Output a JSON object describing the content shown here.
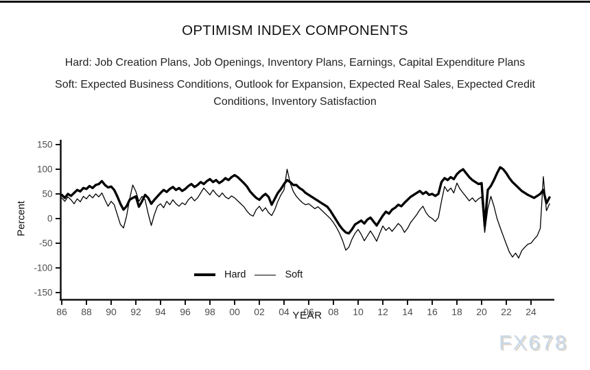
{
  "page": {
    "title": "OPTIMISM INDEX COMPONENTS",
    "subtitle_hard": "Hard: Job Creation Plans, Job Openings, Inventory Plans, Earnings, Capital Expenditure Plans",
    "subtitle_soft": "Soft: Expected Business Conditions, Outlook for Expansion, Expected Real Sales, Expected Credit Conditions, Inventory Satisfaction",
    "watermark": "FX678"
  },
  "colors": {
    "line": "#000000",
    "axis": "#111111",
    "tick_label": "#4d4d4d",
    "watermark": "#c7d8eb"
  },
  "chart_data": {
    "type": "line",
    "title": "OPTIMISM INDEX COMPONENTS",
    "xlabel": "YEAR",
    "ylabel": "Percent",
    "grid": false,
    "axis_color": "#111111",
    "tick_label_color": "#4d4d4d",
    "ylim": [
      -150,
      150
    ],
    "yticks": [
      150,
      100,
      50,
      0,
      -50,
      -100,
      -150
    ],
    "xticks": [
      {
        "year": 1986,
        "label": "86"
      },
      {
        "year": 1988,
        "label": "88"
      },
      {
        "year": 1990,
        "label": "90"
      },
      {
        "year": 1992,
        "label": "92"
      },
      {
        "year": 1994,
        "label": "94"
      },
      {
        "year": 1996,
        "label": "96"
      },
      {
        "year": 1998,
        "label": "98"
      },
      {
        "year": 2000,
        "label": "00"
      },
      {
        "year": 2002,
        "label": "02"
      },
      {
        "year": 2004,
        "label": "04"
      },
      {
        "year": 2006,
        "label": "06"
      },
      {
        "year": 2008,
        "label": "08"
      },
      {
        "year": 2010,
        "label": "10"
      },
      {
        "year": 2012,
        "label": "12"
      },
      {
        "year": 2014,
        "label": "14"
      },
      {
        "year": 2016,
        "label": "16"
      },
      {
        "year": 2018,
        "label": "18"
      },
      {
        "year": 2020,
        "label": "20"
      },
      {
        "year": 2022,
        "label": "22"
      },
      {
        "year": 2024,
        "label": "24"
      }
    ],
    "x_start": 1986.0,
    "x_step": 0.25,
    "legend": {
      "position": "inside-bottom-center",
      "entries": [
        "Hard",
        "Soft"
      ]
    },
    "series": [
      {
        "name": "Hard",
        "color": "#000000",
        "line_width": 3.4,
        "values": [
          48,
          42,
          50,
          46,
          52,
          58,
          55,
          62,
          60,
          66,
          62,
          68,
          70,
          76,
          68,
          63,
          65,
          58,
          45,
          30,
          18,
          25,
          38,
          42,
          45,
          24,
          35,
          48,
          42,
          30,
          38,
          45,
          52,
          58,
          54,
          60,
          64,
          58,
          62,
          56,
          60,
          66,
          70,
          64,
          68,
          74,
          70,
          76,
          80,
          74,
          78,
          72,
          76,
          82,
          78,
          84,
          88,
          84,
          78,
          72,
          65,
          55,
          48,
          42,
          38,
          45,
          50,
          44,
          28,
          40,
          52,
          60,
          70,
          78,
          74,
          68,
          68,
          62,
          58,
          52,
          48,
          44,
          40,
          36,
          32,
          28,
          24,
          16,
          6,
          -4,
          -14,
          -22,
          -28,
          -30,
          -22,
          -12,
          -8,
          -4,
          -10,
          -2,
          2,
          -6,
          -14,
          -4,
          6,
          14,
          10,
          18,
          22,
          28,
          25,
          32,
          38,
          44,
          48,
          52,
          56,
          50,
          54,
          48,
          50,
          46,
          50,
          74,
          82,
          78,
          84,
          80,
          90,
          96,
          100,
          92,
          84,
          78,
          74,
          70,
          72,
          -15,
          58,
          66,
          78,
          92,
          104,
          100,
          92,
          82,
          74,
          68,
          62,
          56,
          52,
          48,
          45,
          42,
          46,
          50,
          58,
          31,
          43
        ]
      },
      {
        "name": "Soft",
        "color": "#000000",
        "line_width": 1.3,
        "values": [
          42,
          35,
          44,
          38,
          30,
          40,
          34,
          45,
          40,
          48,
          42,
          50,
          44,
          52,
          38,
          25,
          35,
          28,
          8,
          -12,
          -19,
          5,
          40,
          68,
          55,
          35,
          45,
          38,
          10,
          -14,
          8,
          25,
          30,
          22,
          35,
          28,
          38,
          30,
          25,
          32,
          28,
          38,
          44,
          36,
          42,
          52,
          62,
          55,
          48,
          58,
          50,
          44,
          52,
          44,
          40,
          46,
          42,
          36,
          30,
          24,
          15,
          8,
          5,
          18,
          25,
          15,
          22,
          12,
          6,
          18,
          35,
          48,
          58,
          100,
          72,
          55,
          45,
          38,
          32,
          28,
          30,
          25,
          20,
          24,
          18,
          12,
          6,
          0,
          -8,
          -18,
          -30,
          -45,
          -64,
          -58,
          -42,
          -30,
          -22,
          -32,
          -45,
          -35,
          -25,
          -35,
          -46,
          -30,
          -15,
          -24,
          -18,
          -26,
          -18,
          -10,
          -16,
          -28,
          -20,
          -8,
          0,
          8,
          18,
          25,
          12,
          4,
          0,
          -6,
          2,
          35,
          65,
          55,
          62,
          52,
          72,
          60,
          52,
          44,
          36,
          42,
          34,
          40,
          44,
          -28,
          20,
          45,
          25,
          0,
          -18,
          -35,
          -52,
          -68,
          -78,
          -70,
          -80,
          -65,
          -58,
          -52,
          -50,
          -42,
          -35,
          -20,
          85,
          16,
          30
        ]
      }
    ]
  }
}
